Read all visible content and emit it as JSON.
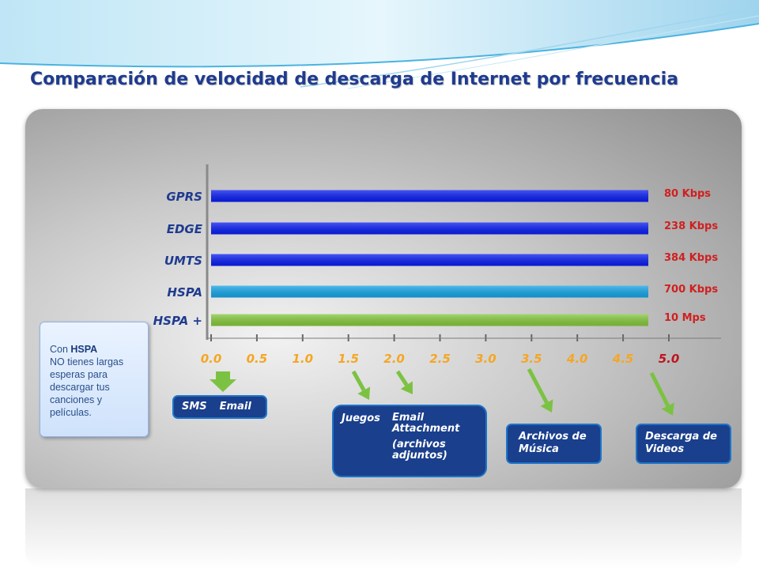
{
  "title": "Comparación de velocidad de descarga de Internet por frecuencia",
  "colors": {
    "title": "#1f3b8f",
    "bar_dark_blue": "#0a1ef0",
    "bar_light_blue": "#15a4e6",
    "bar_green": "#86c83e",
    "speed_label": "#d11f1f",
    "tick_label": "#f5a623",
    "arrow_green": "#7cc242"
  },
  "chart_data": {
    "type": "bar",
    "orientation": "horizontal",
    "categories": [
      "GPRS",
      "EDGE",
      "UMTS",
      "HSPA",
      "HSPA +"
    ],
    "values": [
      5.0,
      5.0,
      5.0,
      5.0,
      5.0
    ],
    "bar_colors": [
      "#0a1ef0",
      "#0a1ef0",
      "#0a1ef0",
      "#15a4e6",
      "#86c83e"
    ],
    "data_labels": [
      "80 Kbps",
      "238 Kbps",
      "384 Kbps",
      "700 Kbps",
      "10 Mps"
    ],
    "xlim": [
      0.0,
      5.0
    ],
    "x_ticks": [
      "0.0",
      "0.5",
      "1.0",
      "1.5",
      "2.0",
      "2.5",
      "3.0",
      "3.5",
      "4.0",
      "4.5",
      "5.0"
    ],
    "grid": false,
    "title": "",
    "xlabel": "",
    "ylabel": ""
  },
  "info_box": {
    "prefix": "Con ",
    "brand": "HSPA",
    "text": "NO tienes largas esperas para descargar tus canciones y películas."
  },
  "apps": {
    "sms_label": "SMS",
    "email_label": "Email",
    "games_label": "Juegos",
    "email_attachment_label": "Email Attachment",
    "attachments_label": "(archivos adjuntos)",
    "music_label": "Archivos de Música",
    "video_label": "Descarga de Videos"
  }
}
